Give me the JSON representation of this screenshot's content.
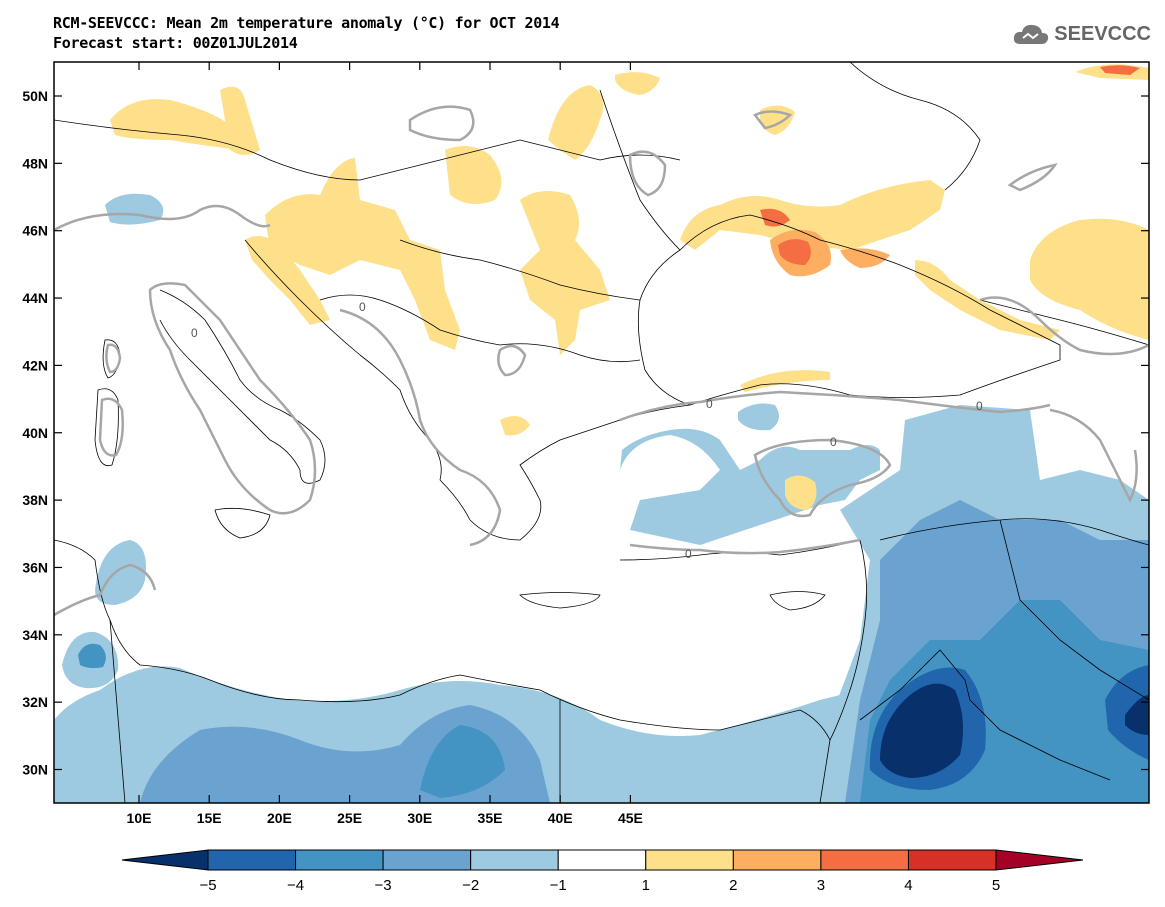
{
  "header": {
    "title_line1": "RCM-SEEVCCC: Mean 2m temperature anomaly (°C) for OCT 2014",
    "title_line2": "Forecast start: 00Z01JUL2014",
    "logo_text": "SEEVCCC"
  },
  "map": {
    "lat_labels": [
      "50N",
      "48N",
      "46N",
      "44N",
      "42N",
      "40N",
      "38N",
      "36N",
      "34N",
      "32N",
      "30N"
    ],
    "lon_labels": [
      "10E",
      "15E",
      "20E",
      "25E",
      "30E",
      "35E",
      "40E",
      "45E"
    ],
    "contour_label": "0"
  },
  "colorbar": {
    "labels": [
      "−5",
      "−4",
      "−3",
      "−2",
      "−1",
      "1",
      "2",
      "3",
      "4",
      "5"
    ],
    "colors": [
      "#08306b",
      "#2166ac",
      "#4393c3",
      "#6ba3d0",
      "#9ecae1",
      "#ffffff",
      "#fee08b",
      "#fdae61",
      "#f46d43",
      "#d73027",
      "#a50026"
    ]
  }
}
